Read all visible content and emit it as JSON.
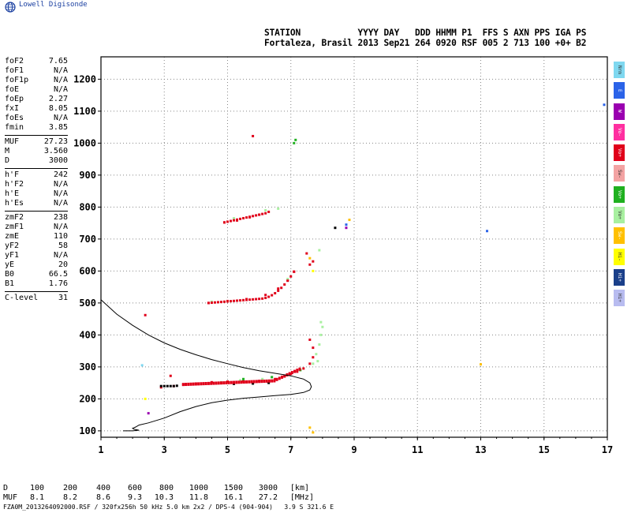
{
  "brand": "Lowell Digisonde",
  "header": {
    "line1": "STATION           YYYY DAY   DDD HHMM P1  FFS S AXN PPS IGA PS",
    "line2": "Fortaleza, Brasil 2013 Sep21 264 0920 RSF 005 2 713 100 +0+ B2"
  },
  "params": [
    [
      [
        "foF2",
        "7.65"
      ],
      [
        "foF1",
        "N/A"
      ],
      [
        "foF1p",
        "N/A"
      ],
      [
        "foE",
        "N/A"
      ],
      [
        "foEp",
        "2.27"
      ],
      [
        "fxI",
        "8.05"
      ],
      [
        "foEs",
        "N/A"
      ],
      [
        "fmin",
        "3.85"
      ]
    ],
    [
      [
        "MUF",
        "27.23"
      ],
      [
        "M",
        "3.560"
      ],
      [
        "D",
        "3000"
      ]
    ],
    [
      [
        "h'F",
        "242"
      ],
      [
        "h'F2",
        "N/A"
      ],
      [
        "h'E",
        "N/A"
      ],
      [
        "h'Es",
        "N/A"
      ]
    ],
    [
      [
        "zmF2",
        "238"
      ],
      [
        "zmF1",
        "N/A"
      ],
      [
        "zmE",
        "110"
      ],
      [
        "yF2",
        "58"
      ],
      [
        "yF1",
        "N/A"
      ],
      [
        "yE",
        "20"
      ],
      [
        "B0",
        "66.5"
      ],
      [
        "B1",
        "1.76"
      ]
    ],
    [
      [
        "C-level",
        "31"
      ]
    ]
  ],
  "swatches": [
    {
      "label": "Nrm",
      "color": "#7fd8f0"
    },
    {
      "label": "E",
      "color": "#2b63e8"
    },
    {
      "label": "W",
      "color": "#9a00b0"
    },
    {
      "label": "Vo-",
      "color": "#ff2fa0"
    },
    {
      "label": "Vo+",
      "color": "#e0001a"
    },
    {
      "label": "Sw-",
      "color": "#f3a3a3"
    },
    {
      "label": "Vo+",
      "color": "#1fb01f"
    },
    {
      "label": "Vo+",
      "color": "#a8f0a0"
    },
    {
      "label": "Sw-",
      "color": "#ffc000"
    },
    {
      "label": "Hi-",
      "color": "#ffff00"
    },
    {
      "label": "Hi+",
      "color": "#1a3f8a"
    },
    {
      "label": "Hi+",
      "color": "#b8bcf0"
    }
  ],
  "chart_data": {
    "type": "scatter",
    "xlim": [
      1,
      17
    ],
    "ylim": [
      80,
      1270
    ],
    "x_ticks": [
      1,
      3,
      5,
      7,
      9,
      11,
      13,
      15,
      17
    ],
    "y_ticks": [
      100,
      200,
      300,
      400,
      500,
      600,
      700,
      800,
      900,
      1000,
      1100,
      1200
    ],
    "grid": true,
    "series": [
      {
        "color": "#e0001a",
        "points": [
          [
            3.6,
            245
          ],
          [
            4.0,
            248
          ],
          [
            4.5,
            252
          ],
          [
            5.0,
            254
          ],
          [
            5.5,
            255
          ],
          [
            6.0,
            256
          ],
          [
            6.5,
            262
          ],
          [
            6.8,
            270
          ],
          [
            7.0,
            278
          ],
          [
            7.2,
            285
          ],
          [
            7.4,
            295
          ],
          [
            7.6,
            310
          ],
          [
            7.7,
            330
          ],
          [
            7.7,
            360
          ],
          [
            7.6,
            385
          ],
          [
            4.4,
            500
          ],
          [
            5.0,
            506
          ],
          [
            5.6,
            512
          ],
          [
            6.2,
            525
          ],
          [
            6.6,
            545
          ],
          [
            6.9,
            570
          ],
          [
            7.1,
            598
          ],
          [
            4.9,
            752
          ],
          [
            5.3,
            758
          ],
          [
            5.7,
            768
          ],
          [
            6.0,
            776
          ],
          [
            6.3,
            785
          ],
          [
            5.8,
            1022
          ],
          [
            2.4,
            462
          ],
          [
            3.2,
            272
          ],
          [
            2.9,
            236
          ],
          [
            3.3,
            240
          ],
          [
            7.5,
            655
          ],
          [
            7.6,
            620
          ],
          [
            7.7,
            630
          ]
        ]
      },
      {
        "color": "#a8f0a0",
        "points": [
          [
            7.8,
            340
          ],
          [
            7.9,
            370
          ],
          [
            7.95,
            400
          ],
          [
            7.95,
            440
          ],
          [
            8.0,
            425
          ],
          [
            6.2,
            790
          ],
          [
            6.6,
            795
          ],
          [
            6.9,
            575
          ],
          [
            5.2,
            765
          ],
          [
            7.9,
            665
          ],
          [
            4.5,
            504
          ],
          [
            7.7,
            310
          ],
          [
            7.85,
            318
          ],
          [
            4.8,
            252
          ],
          [
            5.4,
            258
          ],
          [
            6.1,
            262
          ]
        ]
      },
      {
        "color": "#1fb01f",
        "points": [
          [
            7.1,
            1000
          ],
          [
            7.15,
            1010
          ],
          [
            6.4,
            268
          ],
          [
            5.5,
            262
          ],
          [
            7.3,
            290
          ]
        ]
      },
      {
        "color": "#000000",
        "points": [
          [
            2.9,
            240
          ],
          [
            3.0,
            240
          ],
          [
            3.1,
            240
          ],
          [
            3.2,
            240
          ],
          [
            3.3,
            240
          ],
          [
            3.4,
            241
          ],
          [
            5.2,
            247
          ],
          [
            5.8,
            248
          ],
          [
            6.3,
            250
          ],
          [
            8.4,
            735
          ]
        ]
      },
      {
        "color": "#ffc000",
        "points": [
          [
            7.6,
            640
          ],
          [
            8.85,
            760
          ],
          [
            7.6,
            110
          ],
          [
            7.7,
            95
          ],
          [
            13.0,
            308
          ]
        ]
      },
      {
        "color": "#2b63e8",
        "points": [
          [
            13.2,
            725
          ],
          [
            8.75,
            745
          ],
          [
            16.9,
            1120
          ]
        ]
      },
      {
        "color": "#9a00b0",
        "points": [
          [
            8.75,
            735
          ],
          [
            2.5,
            155
          ]
        ]
      },
      {
        "color": "#7fd8f0",
        "points": [
          [
            2.3,
            305
          ]
        ]
      },
      {
        "color": "#ffff00",
        "points": [
          [
            2.4,
            200
          ],
          [
            7.7,
            600
          ]
        ]
      }
    ],
    "profile": [
      [
        1.0,
        510
      ],
      [
        1.5,
        465
      ],
      [
        2.0,
        430
      ],
      [
        2.5,
        400
      ],
      [
        3.0,
        375
      ],
      [
        3.5,
        355
      ],
      [
        4.0,
        338
      ],
      [
        4.5,
        323
      ],
      [
        5.0,
        310
      ],
      [
        5.5,
        298
      ],
      [
        6.0,
        288
      ],
      [
        6.5,
        280
      ],
      [
        7.0,
        272
      ],
      [
        7.4,
        262
      ],
      [
        7.6,
        250
      ],
      [
        7.65,
        238
      ],
      [
        7.6,
        228
      ],
      [
        7.4,
        220
      ],
      [
        7.0,
        214
      ],
      [
        6.5,
        210
      ],
      [
        6.0,
        206
      ],
      [
        5.5,
        202
      ],
      [
        5.0,
        196
      ],
      [
        4.5,
        188
      ],
      [
        4.0,
        176
      ],
      [
        3.5,
        160
      ],
      [
        3.0,
        140
      ],
      [
        2.5,
        125
      ],
      [
        2.2,
        118
      ],
      [
        2.1,
        112
      ],
      [
        2.0,
        108
      ],
      [
        2.05,
        105
      ],
      [
        2.2,
        102
      ],
      [
        2.0,
        100
      ],
      [
        1.7,
        100
      ]
    ]
  },
  "footer": {
    "d_label": "D",
    "d_values": [
      "100",
      "200",
      "400",
      "600",
      "800",
      "1000",
      "1500",
      "3000"
    ],
    "d_unit": "[km]",
    "muf_label": "MUF",
    "muf_values": [
      "8.1",
      "8.2",
      "8.6",
      "9.3",
      "10.3",
      "11.8",
      "16.1",
      "27.2"
    ],
    "muf_unit": "[MHz]",
    "file_line": "FZA0M_2013264092000.RSF / 320fx256h 50 kHz 5.0 km 2x2 / DPS-4 (904-904)   3.9 S 321.6 E"
  }
}
